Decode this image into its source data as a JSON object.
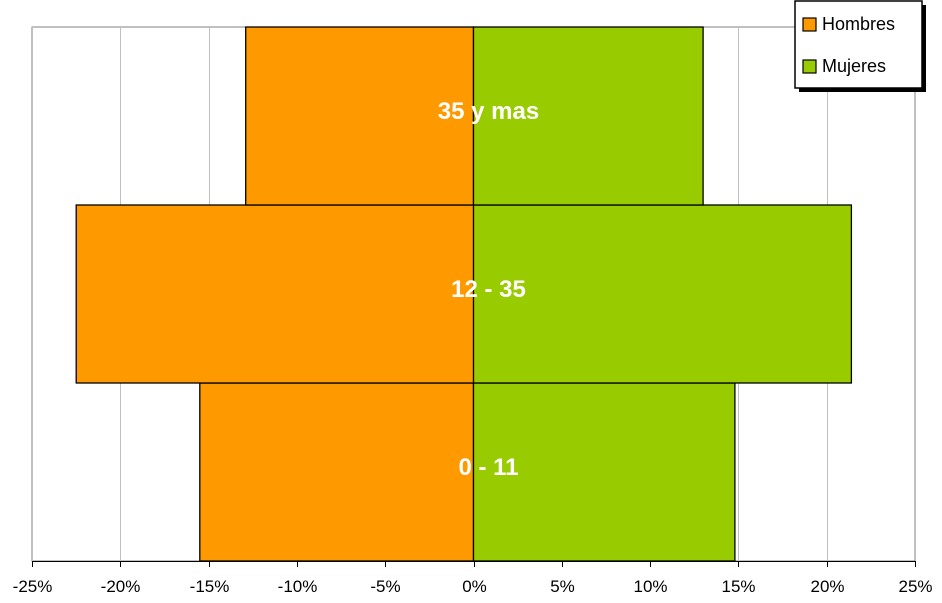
{
  "chart_data": {
    "type": "bar",
    "orientation": "horizontal",
    "stacking": "population-pyramid",
    "categories": [
      "0 - 11",
      "12 - 35",
      "35 y mas"
    ],
    "series": [
      {
        "name": "Hombres",
        "values": [
          -15.5,
          -22.5,
          -12.9
        ],
        "color": "#ff9900"
      },
      {
        "name": "Mujeres",
        "values": [
          14.8,
          21.4,
          13.0
        ],
        "color": "#99cc00"
      }
    ],
    "x_ticks": [
      "-25%",
      "-20%",
      "-15%",
      "-10%",
      "-5%",
      "0%",
      "5%",
      "10%",
      "15%",
      "20%",
      "25%"
    ],
    "xlim": [
      -25,
      25
    ],
    "grid": "vertical",
    "legend": "top-right",
    "label_color": "#ffffff"
  }
}
